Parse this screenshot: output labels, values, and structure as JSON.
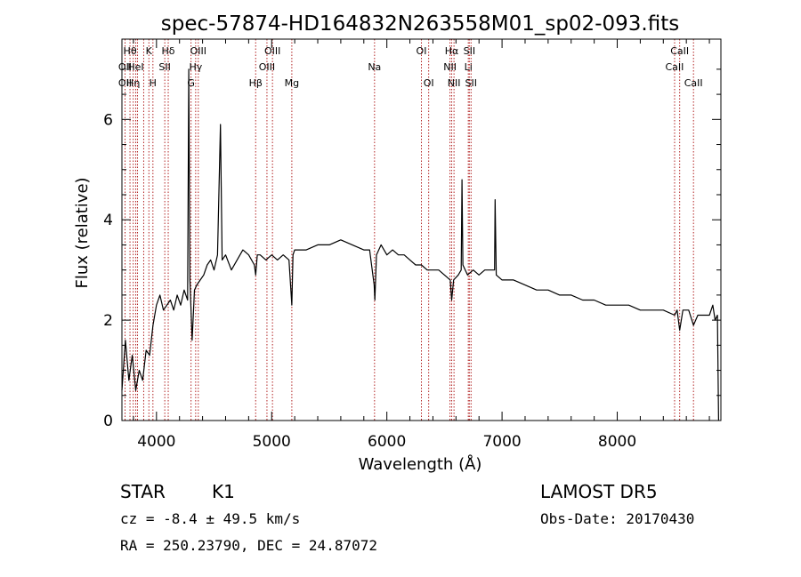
{
  "chart_data": {
    "type": "line",
    "title": "spec-57874-HD164832N263558M01_sp02-093.fits",
    "xlabel": "Wavelength (Å)",
    "ylabel": "Flux (relative)",
    "xlim": [
      3700,
      8900
    ],
    "ylim": [
      0,
      7.6
    ],
    "xticks": [
      4000,
      5000,
      6000,
      7000,
      8000
    ],
    "yticks": [
      0,
      2,
      4,
      6
    ],
    "grid": false,
    "legend": "none",
    "line_color": "#000000",
    "marker_color": "#b22222",
    "series": [
      {
        "x": [
          3700,
          3730,
          3760,
          3790,
          3820,
          3850,
          3880,
          3910,
          3940,
          3970,
          4000,
          4030,
          4060,
          4090,
          4120,
          4150,
          4180,
          4210,
          4240,
          4270,
          4280,
          4290,
          4310,
          4330,
          4350,
          4380,
          4410,
          4440,
          4470,
          4500,
          4530,
          4555,
          4570,
          4600,
          4650,
          4700,
          4750,
          4800,
          4850,
          4861,
          4875,
          4900,
          4950,
          5000,
          5050,
          5100,
          5150,
          5175,
          5185,
          5200,
          5250,
          5300,
          5400,
          5500,
          5600,
          5700,
          5800,
          5850,
          5890,
          5896,
          5910,
          5950,
          6000,
          6050,
          6100,
          6150,
          6200,
          6250,
          6300,
          6350,
          6400,
          6450,
          6500,
          6550,
          6563,
          6580,
          6620,
          6645,
          6652,
          6660,
          6700,
          6750,
          6800,
          6850,
          6900,
          6935,
          6940,
          6950,
          7000,
          7100,
          7200,
          7300,
          7400,
          7500,
          7600,
          7700,
          7800,
          7900,
          8000,
          8100,
          8200,
          8300,
          8400,
          8498,
          8520,
          8542,
          8570,
          8620,
          8662,
          8700,
          8750,
          8800,
          8830,
          8850,
          8870,
          8880
        ],
        "values": [
          0.6,
          1.6,
          0.8,
          1.3,
          0.6,
          1.0,
          0.8,
          1.4,
          1.3,
          1.9,
          2.3,
          2.5,
          2.2,
          2.3,
          2.4,
          2.2,
          2.5,
          2.3,
          2.6,
          2.4,
          7.0,
          2.8,
          1.6,
          2.6,
          2.7,
          2.8,
          2.9,
          3.1,
          3.2,
          3.0,
          3.3,
          5.9,
          3.2,
          3.3,
          3.0,
          3.2,
          3.4,
          3.3,
          3.1,
          2.9,
          3.3,
          3.3,
          3.2,
          3.3,
          3.2,
          3.3,
          3.2,
          2.3,
          3.3,
          3.4,
          3.4,
          3.4,
          3.5,
          3.5,
          3.6,
          3.5,
          3.4,
          3.4,
          2.7,
          2.4,
          3.3,
          3.5,
          3.3,
          3.4,
          3.3,
          3.3,
          3.2,
          3.1,
          3.1,
          3.0,
          3.0,
          3.0,
          2.9,
          2.8,
          2.4,
          2.8,
          2.9,
          3.0,
          4.8,
          3.1,
          2.9,
          3.0,
          2.9,
          3.0,
          3.0,
          3.0,
          4.4,
          2.9,
          2.8,
          2.8,
          2.7,
          2.6,
          2.6,
          2.5,
          2.5,
          2.4,
          2.4,
          2.3,
          2.3,
          2.3,
          2.2,
          2.2,
          2.2,
          2.1,
          2.2,
          1.8,
          2.2,
          2.2,
          1.9,
          2.1,
          2.1,
          2.1,
          2.3,
          2.0,
          2.1,
          0.0
        ]
      }
    ],
    "line_markers": [
      {
        "x": 3727,
        "labels": [
          {
            "text": "OII",
            "row": 2
          },
          {
            "text": "OII",
            "row": 3
          }
        ]
      },
      {
        "x": 3770,
        "labels": [
          {
            "text": "Hθ",
            "row": 1
          }
        ]
      },
      {
        "x": 3798,
        "labels": [
          {
            "text": "Hη",
            "row": 3
          }
        ]
      },
      {
        "x": 3820,
        "labels": [
          {
            "text": "HeI",
            "row": 2
          }
        ]
      },
      {
        "x": 3835,
        "labels": []
      },
      {
        "x": 3889,
        "labels": []
      },
      {
        "x": 3934,
        "labels": [
          {
            "text": "K",
            "row": 1
          }
        ]
      },
      {
        "x": 3969,
        "labels": [
          {
            "text": "H",
            "row": 3
          }
        ]
      },
      {
        "x": 4072,
        "labels": [
          {
            "text": "SII",
            "row": 2
          }
        ]
      },
      {
        "x": 4102,
        "labels": [
          {
            "text": "Hδ",
            "row": 1
          }
        ]
      },
      {
        "x": 4300,
        "labels": [
          {
            "text": "G",
            "row": 3
          }
        ]
      },
      {
        "x": 4340,
        "labels": [
          {
            "text": "Hγ",
            "row": 2
          }
        ]
      },
      {
        "x": 4363,
        "labels": [
          {
            "text": "OIII",
            "row": 1
          }
        ]
      },
      {
        "x": 4861,
        "labels": [
          {
            "text": "Hβ",
            "row": 3
          }
        ]
      },
      {
        "x": 4959,
        "labels": [
          {
            "text": "OIII",
            "row": 2
          }
        ]
      },
      {
        "x": 5007,
        "labels": [
          {
            "text": "OIII",
            "row": 1
          }
        ]
      },
      {
        "x": 5175,
        "labels": [
          {
            "text": "Mg",
            "row": 3
          }
        ]
      },
      {
        "x": 5893,
        "labels": [
          {
            "text": "Na",
            "row": 2
          }
        ]
      },
      {
        "x": 6300,
        "labels": [
          {
            "text": "OI",
            "row": 1
          }
        ]
      },
      {
        "x": 6363,
        "labels": [
          {
            "text": "OI",
            "row": 3
          }
        ]
      },
      {
        "x": 6548,
        "labels": [
          {
            "text": "NII",
            "row": 2
          }
        ]
      },
      {
        "x": 6563,
        "labels": [
          {
            "text": "Hα",
            "row": 1
          }
        ]
      },
      {
        "x": 6583,
        "labels": [
          {
            "text": "NII",
            "row": 3
          }
        ]
      },
      {
        "x": 6707,
        "labels": [
          {
            "text": "Li",
            "row": 2
          }
        ]
      },
      {
        "x": 6716,
        "labels": [
          {
            "text": "SII",
            "row": 1
          }
        ]
      },
      {
        "x": 6731,
        "labels": [
          {
            "text": "SII",
            "row": 3
          }
        ]
      },
      {
        "x": 8498,
        "labels": [
          {
            "text": "CaII",
            "row": 2
          }
        ]
      },
      {
        "x": 8542,
        "labels": [
          {
            "text": "CaII",
            "row": 1
          }
        ]
      },
      {
        "x": 8662,
        "labels": [
          {
            "text": "CaII",
            "row": 3
          }
        ]
      }
    ]
  },
  "info": {
    "object_class": "STAR",
    "subclass": "K1",
    "survey": "LAMOST DR5",
    "redshift": "cz = -8.4 ± 49.5 km/s",
    "obs_date": "Obs-Date: 20170430",
    "coords": "RA = 250.23790, DEC =  24.87072"
  }
}
